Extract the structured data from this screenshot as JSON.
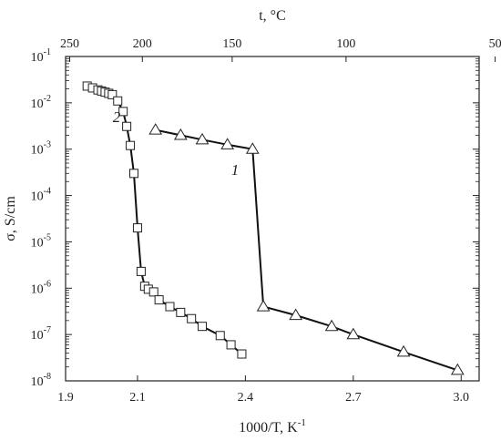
{
  "chart_data": {
    "type": "scatter",
    "title": "",
    "xlabel": "1000/T, K",
    "xlabel_sup": "-1",
    "x2label": "t, °C",
    "ylabel": "σ, S/cm",
    "xlim": [
      1.9,
      3.05
    ],
    "ylim_log10": [
      -8,
      -1
    ],
    "yscale": "log",
    "grid": false,
    "x_ticks": [
      1.9,
      2.1,
      2.4,
      2.7,
      3.0
    ],
    "x_tick_labels": [
      "1.9",
      "2.1",
      "2.4",
      "2.7",
      "3.0"
    ],
    "x2_ticks_celsius": [
      250,
      200,
      150,
      100,
      50
    ],
    "x2_tick_labels": [
      "250",
      "200",
      "150",
      "100",
      "50"
    ],
    "y_tick_mantissa": "10",
    "y_tick_exponents": [
      "-1",
      "-2",
      "-3",
      "-4",
      "-5",
      "-6",
      "-7",
      "-8"
    ],
    "series": [
      {
        "label": "1",
        "marker": "triangle",
        "x": [
          2.15,
          2.22,
          2.28,
          2.35,
          2.42,
          2.45,
          2.54,
          2.64,
          2.7,
          2.84,
          2.99
        ],
        "y": [
          0.0026,
          0.002,
          0.0016,
          0.00125,
          0.001,
          4e-07,
          2.6e-07,
          1.5e-07,
          1e-07,
          4.2e-08,
          1.7e-08
        ]
      },
      {
        "label": "2",
        "marker": "square",
        "x": [
          1.96,
          1.975,
          1.99,
          2.0,
          2.01,
          2.02,
          2.03,
          2.045,
          2.06,
          2.07,
          2.08,
          2.09,
          2.1,
          2.11,
          2.12,
          2.13,
          2.145,
          2.16,
          2.19,
          2.22,
          2.25,
          2.28,
          2.33,
          2.36,
          2.39
        ],
        "y": [
          0.023,
          0.021,
          0.019,
          0.018,
          0.017,
          0.016,
          0.015,
          0.011,
          0.0065,
          0.0031,
          0.0012,
          0.0003,
          2e-05,
          2.3e-06,
          1.1e-06,
          9.5e-07,
          8.3e-07,
          5.6e-07,
          4e-07,
          3e-07,
          2.2e-07,
          1.5e-07,
          9.5e-08,
          6e-08,
          3.8e-08
        ]
      }
    ]
  }
}
